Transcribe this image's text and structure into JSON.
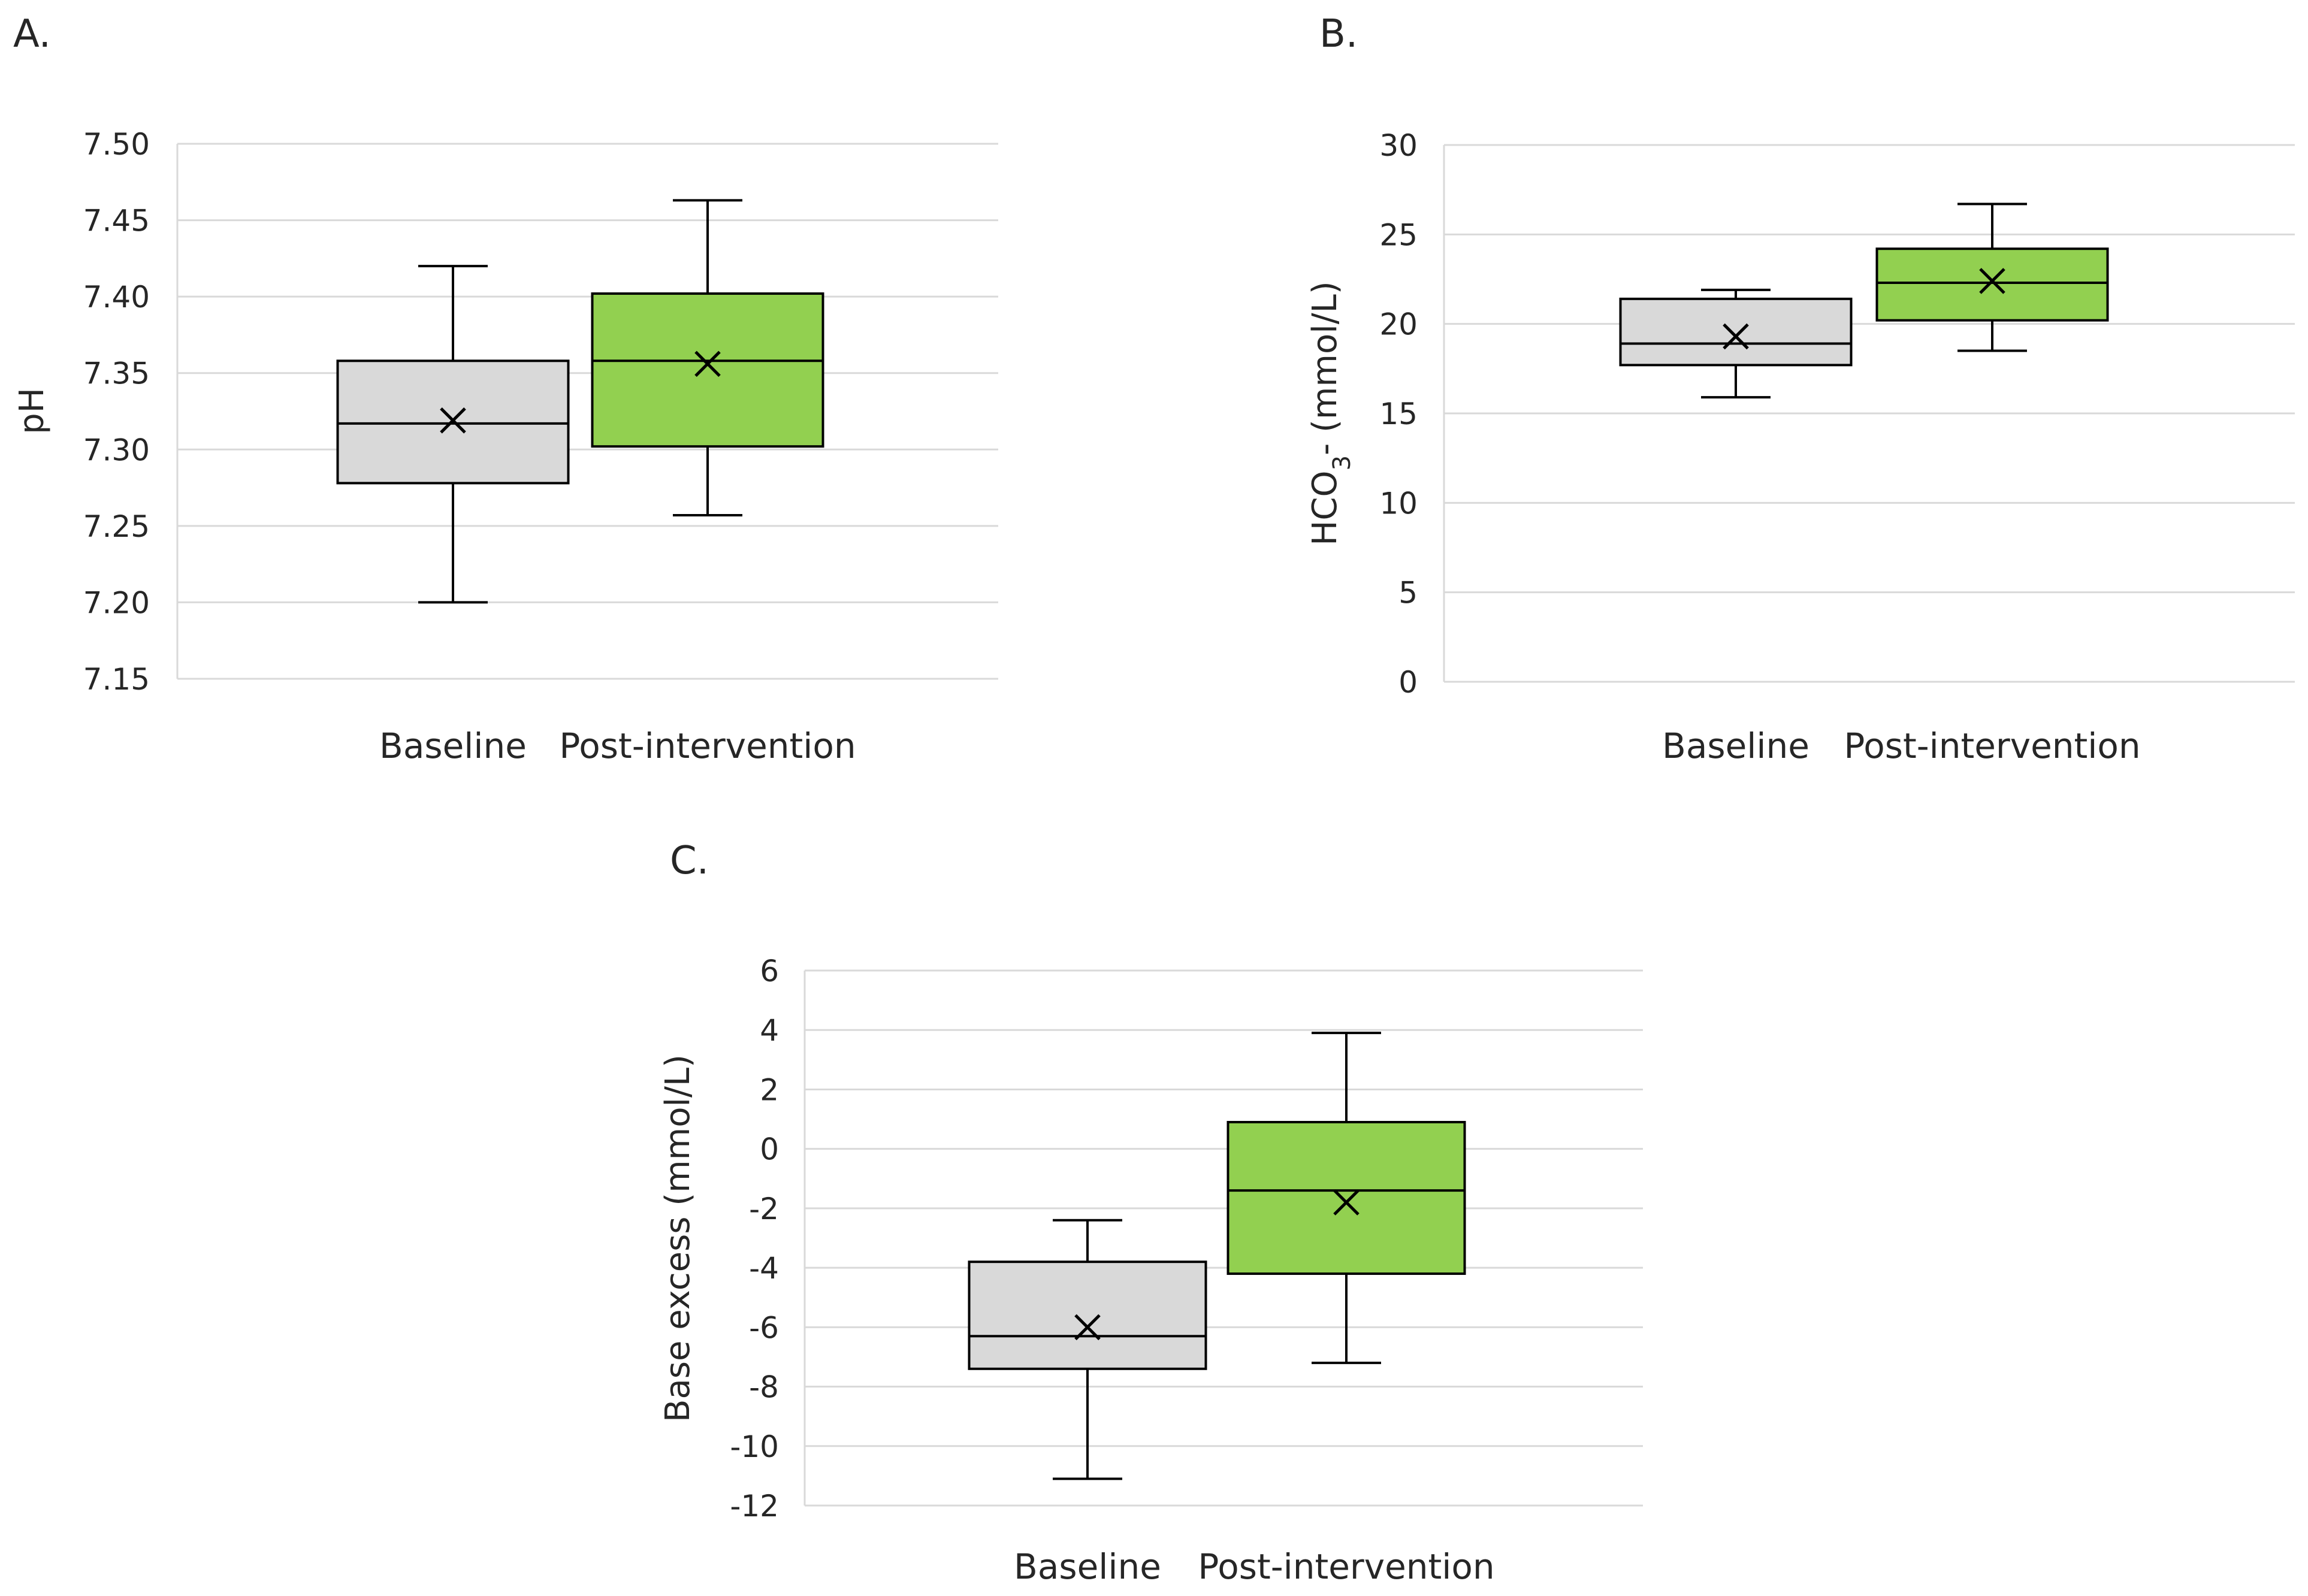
{
  "figure": {
    "panels": [
      "A.",
      "B.",
      "C."
    ]
  },
  "colors": {
    "baseline": "#d9d9d9",
    "post_intervention": "#92d050",
    "outline": "#000000",
    "grid": "#d9d9d9",
    "text": "#262626"
  },
  "chart_data": [
    {
      "type": "box",
      "panel_label": "A.",
      "ylabel": "pH",
      "ylim": [
        7.15,
        7.5
      ],
      "yticks": [
        "7.15",
        "7.20",
        "7.25",
        "7.30",
        "7.35",
        "7.40",
        "7.45",
        "7.50"
      ],
      "categories": [
        "Baseline",
        "Post-intervention"
      ],
      "grid": true,
      "boxes": [
        {
          "category": "Baseline",
          "min": 7.2,
          "q1": 7.278,
          "median": 7.317,
          "q3": 7.358,
          "max": 7.42,
          "mean": 7.319,
          "color": "#d9d9d9"
        },
        {
          "category": "Post-intervention",
          "min": 7.257,
          "q1": 7.302,
          "median": 7.358,
          "q3": 7.402,
          "max": 7.463,
          "mean": 7.356,
          "color": "#92d050"
        }
      ]
    },
    {
      "type": "box",
      "panel_label": "B.",
      "ylabel": "HCO3- (mmol/L)",
      "ylim": [
        0,
        30
      ],
      "yticks": [
        "0",
        "5",
        "10",
        "15",
        "20",
        "25",
        "30"
      ],
      "categories": [
        "Baseline",
        "Post-intervention"
      ],
      "grid": true,
      "boxes": [
        {
          "category": "Baseline",
          "min": 15.9,
          "q1": 17.7,
          "median": 18.9,
          "q3": 21.4,
          "max": 21.9,
          "mean": 19.3,
          "color": "#d9d9d9"
        },
        {
          "category": "Post-intervention",
          "min": 18.5,
          "q1": 20.2,
          "median": 22.3,
          "q3": 24.2,
          "max": 26.7,
          "mean": 22.4,
          "color": "#92d050"
        }
      ]
    },
    {
      "type": "box",
      "panel_label": "C.",
      "ylabel": "Base excess (mmol/L)",
      "ylim": [
        -12,
        6
      ],
      "yticks": [
        "-12",
        "-10",
        "-8",
        "-6",
        "-4",
        "-2",
        "0",
        "2",
        "4",
        "6"
      ],
      "categories": [
        "Baseline",
        "Post-intervention"
      ],
      "grid": true,
      "boxes": [
        {
          "category": "Baseline",
          "min": -11.1,
          "q1": -7.4,
          "median": -6.3,
          "q3": -3.8,
          "max": -2.4,
          "mean": -6.0,
          "color": "#d9d9d9"
        },
        {
          "category": "Post-intervention",
          "min": -7.2,
          "q1": -4.2,
          "median": -1.4,
          "q3": 0.9,
          "max": 3.9,
          "mean": -1.8,
          "color": "#92d050"
        }
      ]
    }
  ]
}
